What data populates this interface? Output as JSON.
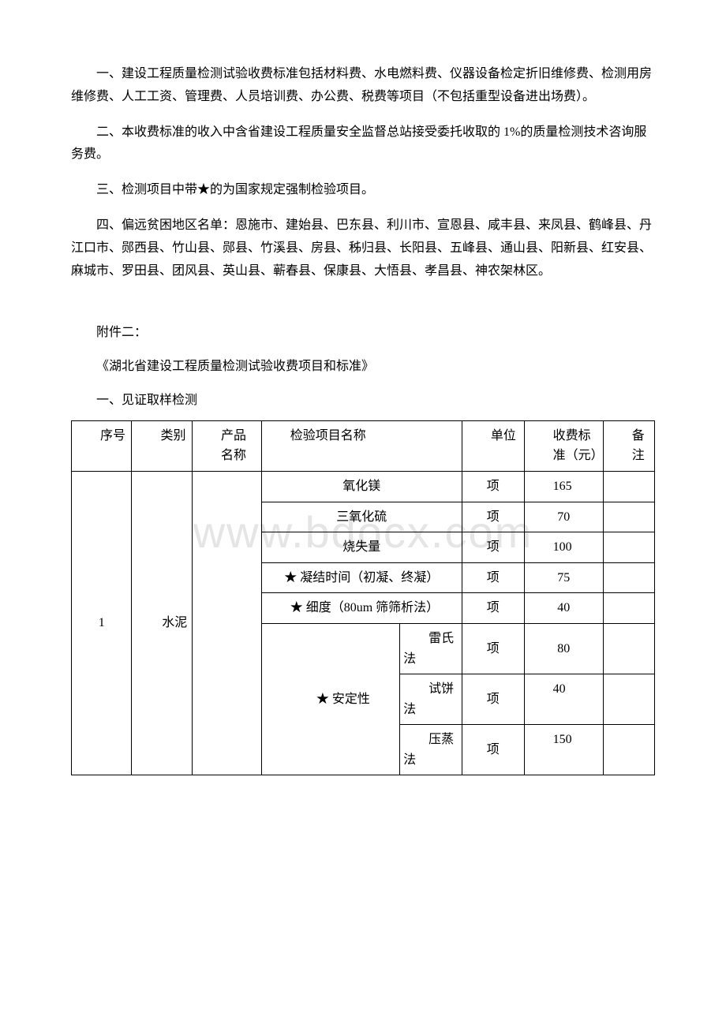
{
  "watermark": "www.bdocx.com",
  "paragraphs": {
    "p1": "一、建设工程质量检测试验收费标准包括材料费、水电燃料费、仪器设备检定折旧维修费、检测用房维修费、人工工资、管理费、人员培训费、办公费、税费等项目（不包括重型设备进出场费）。",
    "p2": "二、本收费标准的收入中含省建设工程质量安全监督总站接受委托收取的 1%的质量检测技术咨询服务费。",
    "p3": "三、检测项目中带★的为国家规定强制检验项目。",
    "p4": "四、偏远贫困地区名单：恩施市、建始县、巴东县、利川市、宣恩县、咸丰县、来凤县、鹤峰县、丹江口市、郧西县、竹山县、郧县、竹溪县、房县、秭归县、长阳县、五峰县、通山县、阳新县、红安县、麻城市、罗田县、团风县、英山县、蕲春县、保康县、大悟县、孝昌县、神农架林区。"
  },
  "attachment": {
    "header": "附件二：",
    "title": "《湖北省建设工程质量检测试验收费项目和标准》",
    "section": "一、见证取样检测"
  },
  "tableHeaders": {
    "seq": "序号",
    "category": "类别",
    "product": "产品名称",
    "itemName": "检验项目名称",
    "unit": "单位",
    "fee": "收费标准（元）",
    "note": "备注"
  },
  "tableData": {
    "seq": "1",
    "category": "水泥",
    "product": "",
    "rows": [
      {
        "item": "氧化镁",
        "sub": "",
        "unit": "项",
        "fee": "165",
        "note": ""
      },
      {
        "item": "三氧化硫",
        "sub": "",
        "unit": "项",
        "fee": "70",
        "note": ""
      },
      {
        "item": "烧失量",
        "sub": "",
        "unit": "项",
        "fee": "100",
        "note": ""
      },
      {
        "item": "★ 凝结时间（初凝、终凝）",
        "sub": "",
        "unit": "项",
        "fee": "75",
        "note": ""
      },
      {
        "item": "★ 细度（80um 筛筛析法）",
        "sub": "",
        "unit": "项",
        "fee": "40",
        "note": ""
      }
    ],
    "stability": {
      "label": "★ 安定性",
      "subs": [
        {
          "sub": "雷氏法",
          "unit": "项",
          "fee": "80",
          "note": ""
        },
        {
          "sub": "试饼法",
          "unit": "项",
          "fee": "40",
          "note": ""
        },
        {
          "sub": "压蒸法",
          "unit": "项",
          "fee": "150",
          "note": ""
        }
      ]
    }
  }
}
